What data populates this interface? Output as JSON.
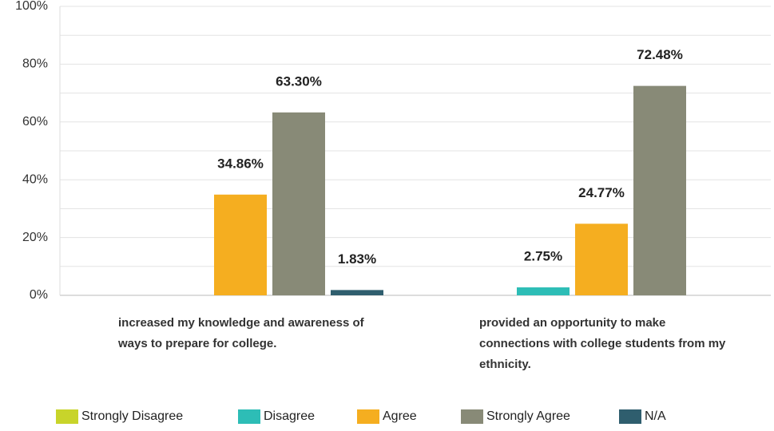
{
  "chart_data": {
    "type": "bar",
    "categories": [
      "increased my knowledge and awareness of ways to prepare for college.",
      "provided an opportunity to make connections with college students from my ethnicity."
    ],
    "series": [
      {
        "name": "Strongly Disagree",
        "color": "#c8d42a",
        "values": [
          0,
          0
        ],
        "value_labels": [
          null,
          null
        ]
      },
      {
        "name": "Disagree",
        "color": "#2dbdb6",
        "values": [
          0,
          2.75
        ],
        "value_labels": [
          null,
          "2.75%"
        ]
      },
      {
        "name": "Agree",
        "color": "#f5ae20",
        "values": [
          34.86,
          24.77
        ],
        "value_labels": [
          "34.86%",
          "24.77%"
        ]
      },
      {
        "name": "Strongly Agree",
        "color": "#888a77",
        "values": [
          63.3,
          72.48
        ],
        "value_labels": [
          "63.30%",
          "72.48%"
        ]
      },
      {
        "name": "N/A",
        "color": "#2f5e6e",
        "values": [
          1.83,
          0
        ],
        "value_labels": [
          "1.83%",
          null
        ]
      }
    ],
    "ylim": [
      0,
      100
    ],
    "yticks": [
      {
        "value": 0,
        "label": "0%"
      },
      {
        "value": 20,
        "label": "20%"
      },
      {
        "value": 40,
        "label": "40%"
      },
      {
        "value": 60,
        "label": "60%"
      },
      {
        "value": 80,
        "label": "80%"
      },
      {
        "value": 100,
        "label": "100%"
      }
    ],
    "minor_yticks": [
      10,
      30,
      50,
      70,
      90
    ],
    "grid": true,
    "legend": "bottom"
  }
}
